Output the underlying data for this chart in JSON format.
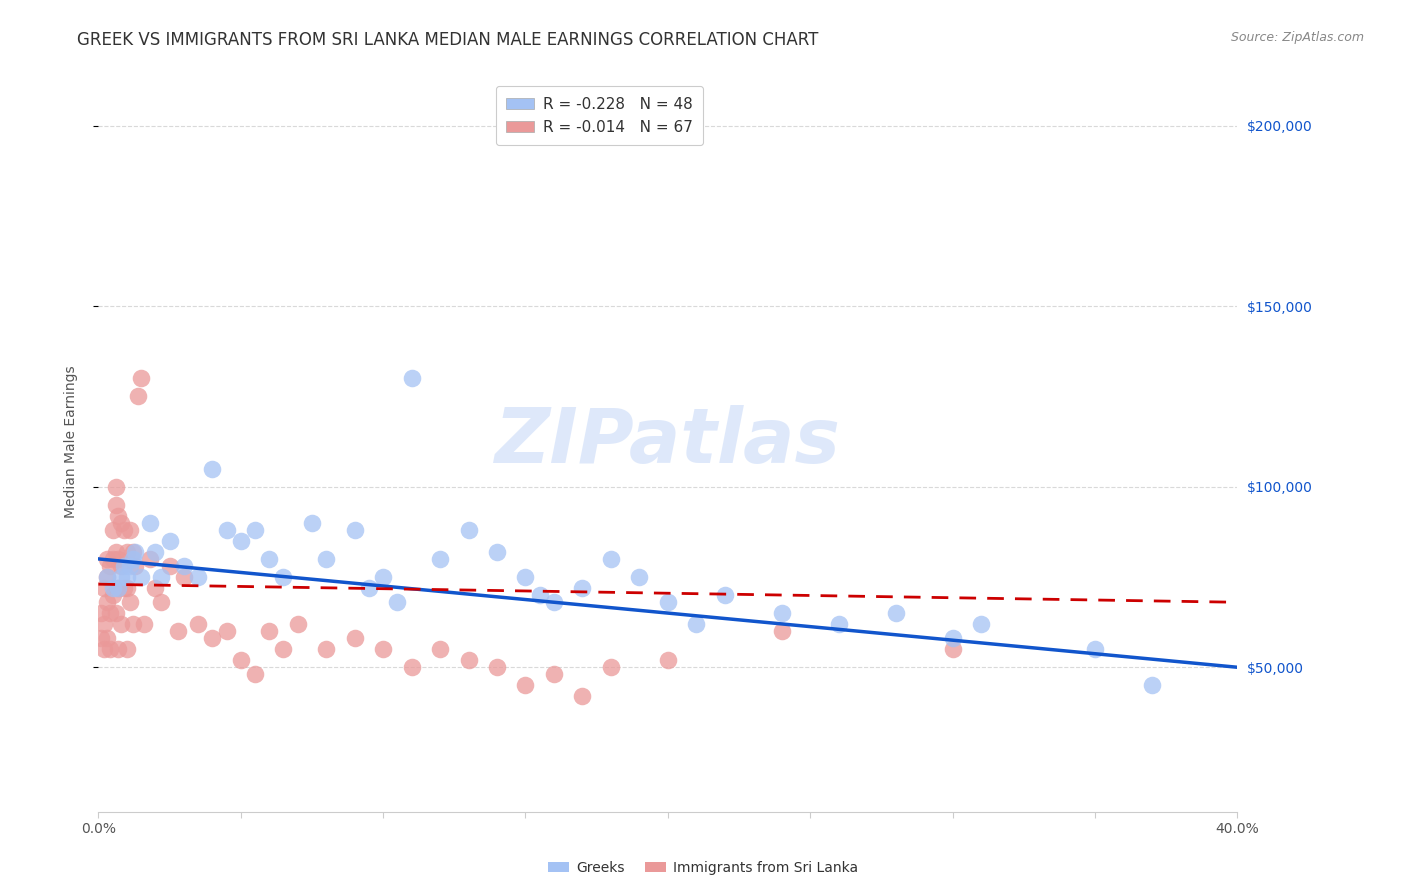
{
  "title": "GREEK VS IMMIGRANTS FROM SRI LANKA MEDIAN MALE EARNINGS CORRELATION CHART",
  "source": "Source: ZipAtlas.com",
  "ylabel": "Median Male Earnings",
  "xlim": [
    0.0,
    0.4
  ],
  "ylim": [
    10000,
    215000
  ],
  "yticks": [
    50000,
    100000,
    150000,
    200000
  ],
  "xticks": [
    0.0,
    0.05,
    0.1,
    0.15,
    0.2,
    0.25,
    0.3,
    0.35,
    0.4
  ],
  "watermark": "ZIPatlas",
  "legend_greek_r": "R = -0.228",
  "legend_greek_n": "N = 48",
  "legend_sri_r": "R = -0.014",
  "legend_sri_n": "N = 67",
  "greek_color": "#a4c2f4",
  "sri_color": "#ea9999",
  "greek_line_color": "#1155cc",
  "sri_line_color": "#cc0000",
  "background_color": "#ffffff",
  "grid_color": "#d9d9d9",
  "right_tick_color": "#1155cc",
  "greeks_x": [
    0.003,
    0.005,
    0.007,
    0.008,
    0.009,
    0.01,
    0.011,
    0.012,
    0.013,
    0.015,
    0.018,
    0.02,
    0.022,
    0.025,
    0.03,
    0.035,
    0.04,
    0.045,
    0.05,
    0.055,
    0.06,
    0.065,
    0.075,
    0.08,
    0.09,
    0.095,
    0.1,
    0.105,
    0.11,
    0.12,
    0.13,
    0.14,
    0.15,
    0.155,
    0.16,
    0.17,
    0.18,
    0.19,
    0.2,
    0.21,
    0.22,
    0.24,
    0.26,
    0.28,
    0.3,
    0.31,
    0.35,
    0.37
  ],
  "greeks_y": [
    75000,
    72000,
    72000,
    75000,
    78000,
    75000,
    78000,
    80000,
    82000,
    75000,
    90000,
    82000,
    75000,
    85000,
    78000,
    75000,
    105000,
    88000,
    85000,
    88000,
    80000,
    75000,
    90000,
    80000,
    88000,
    72000,
    75000,
    68000,
    130000,
    80000,
    88000,
    82000,
    75000,
    70000,
    68000,
    72000,
    80000,
    75000,
    68000,
    62000,
    70000,
    65000,
    62000,
    65000,
    58000,
    62000,
    55000,
    45000
  ],
  "sri_x": [
    0.001,
    0.001,
    0.002,
    0.002,
    0.002,
    0.003,
    0.003,
    0.003,
    0.003,
    0.004,
    0.004,
    0.004,
    0.005,
    0.005,
    0.005,
    0.006,
    0.006,
    0.006,
    0.006,
    0.007,
    0.007,
    0.007,
    0.007,
    0.008,
    0.008,
    0.008,
    0.009,
    0.009,
    0.01,
    0.01,
    0.01,
    0.011,
    0.011,
    0.012,
    0.012,
    0.013,
    0.014,
    0.015,
    0.016,
    0.018,
    0.02,
    0.022,
    0.025,
    0.028,
    0.03,
    0.035,
    0.04,
    0.045,
    0.05,
    0.055,
    0.06,
    0.065,
    0.07,
    0.08,
    0.09,
    0.1,
    0.11,
    0.12,
    0.13,
    0.14,
    0.15,
    0.16,
    0.17,
    0.18,
    0.2,
    0.24,
    0.3
  ],
  "sri_y": [
    65000,
    58000,
    72000,
    62000,
    55000,
    80000,
    75000,
    68000,
    58000,
    78000,
    65000,
    55000,
    88000,
    80000,
    70000,
    100000,
    95000,
    82000,
    65000,
    92000,
    80000,
    72000,
    55000,
    90000,
    78000,
    62000,
    88000,
    72000,
    82000,
    72000,
    55000,
    88000,
    68000,
    82000,
    62000,
    78000,
    125000,
    130000,
    62000,
    80000,
    72000,
    68000,
    78000,
    60000,
    75000,
    62000,
    58000,
    60000,
    52000,
    48000,
    60000,
    55000,
    62000,
    55000,
    58000,
    55000,
    50000,
    55000,
    52000,
    50000,
    45000,
    48000,
    42000,
    50000,
    52000,
    60000,
    55000
  ],
  "greek_line_x0": 0.0,
  "greek_line_y0": 80000,
  "greek_line_x1": 0.4,
  "greek_line_y1": 50000,
  "sri_line_x0": 0.0,
  "sri_line_y0": 73000,
  "sri_line_x1": 0.4,
  "sri_line_y1": 68000,
  "title_fontsize": 12,
  "axis_label_fontsize": 10,
  "tick_fontsize": 10,
  "legend_fontsize": 11,
  "watermark_fontsize": 55,
  "watermark_color": "#c9daf8",
  "watermark_alpha": 0.6,
  "scatter_size": 160,
  "scatter_alpha": 0.75
}
